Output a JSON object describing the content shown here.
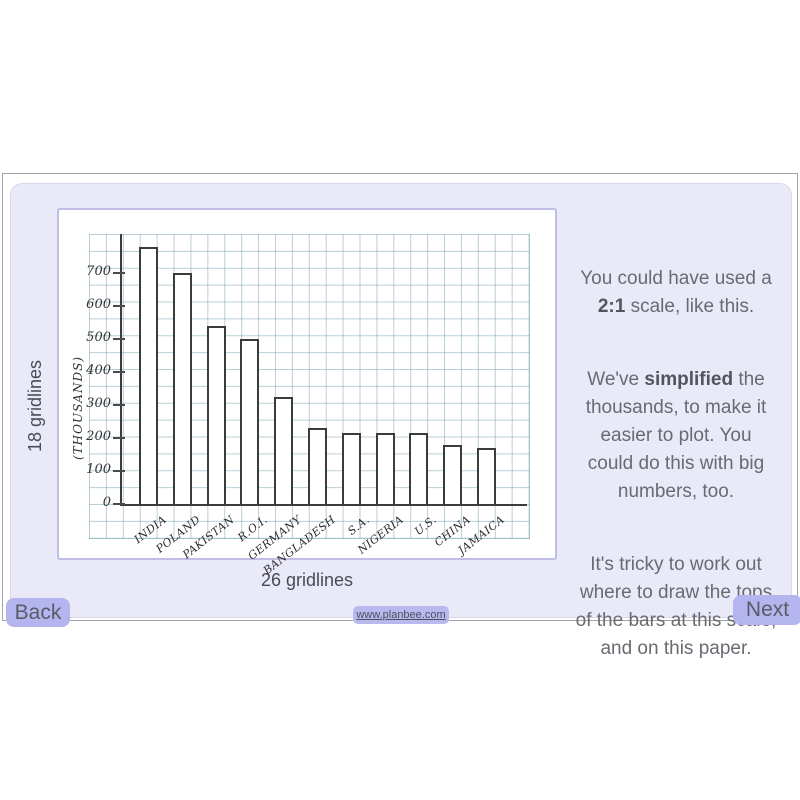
{
  "slide": {
    "back_label": "Back",
    "next_label": "Next",
    "site_link": "www.planbee.com"
  },
  "annotations": {
    "left_note": "18 gridlines",
    "bottom_note": "26 gridlines"
  },
  "explanation": {
    "p1": {
      "pre": "You could have used a\n",
      "bold": "2:1",
      "post": " scale, like this."
    },
    "p2": {
      "pre": "We've ",
      "bold": "simplified",
      "post": " the\nthousands, to make it\neasier to plot. You\ncould do this with big\nnumbers, too."
    },
    "p3": {
      "text": "It's tricky to work out\nwhere to draw the tops\nof the bars at this scale,\nand on this paper."
    }
  },
  "chart_data": {
    "type": "bar",
    "categories": [
      "INDIA",
      "POLAND",
      "PAKISTAN",
      "R.O.I.",
      "GERMANY",
      "BANGLADESH",
      "S.A.",
      "NIGERIA",
      "U.S.",
      "CHINA",
      "JAMAICA"
    ],
    "values": [
      780,
      700,
      540,
      500,
      325,
      230,
      215,
      215,
      215,
      180,
      170
    ],
    "title": "",
    "xlabel": "",
    "ylabel": "(THOUSANDS)",
    "yticks": [
      0,
      100,
      200,
      300,
      400,
      500,
      600,
      700
    ],
    "ylim": [
      0,
      800
    ],
    "scale": "2:1",
    "grid": true,
    "legend": false,
    "style": "hand-drawn on graph paper"
  },
  "colors": {
    "panel": "#e9e9f8",
    "button": "#b4b4ef",
    "grid_line": "#7caab6",
    "ink": "#3b3b3b",
    "body_text": "#6a6a72"
  }
}
